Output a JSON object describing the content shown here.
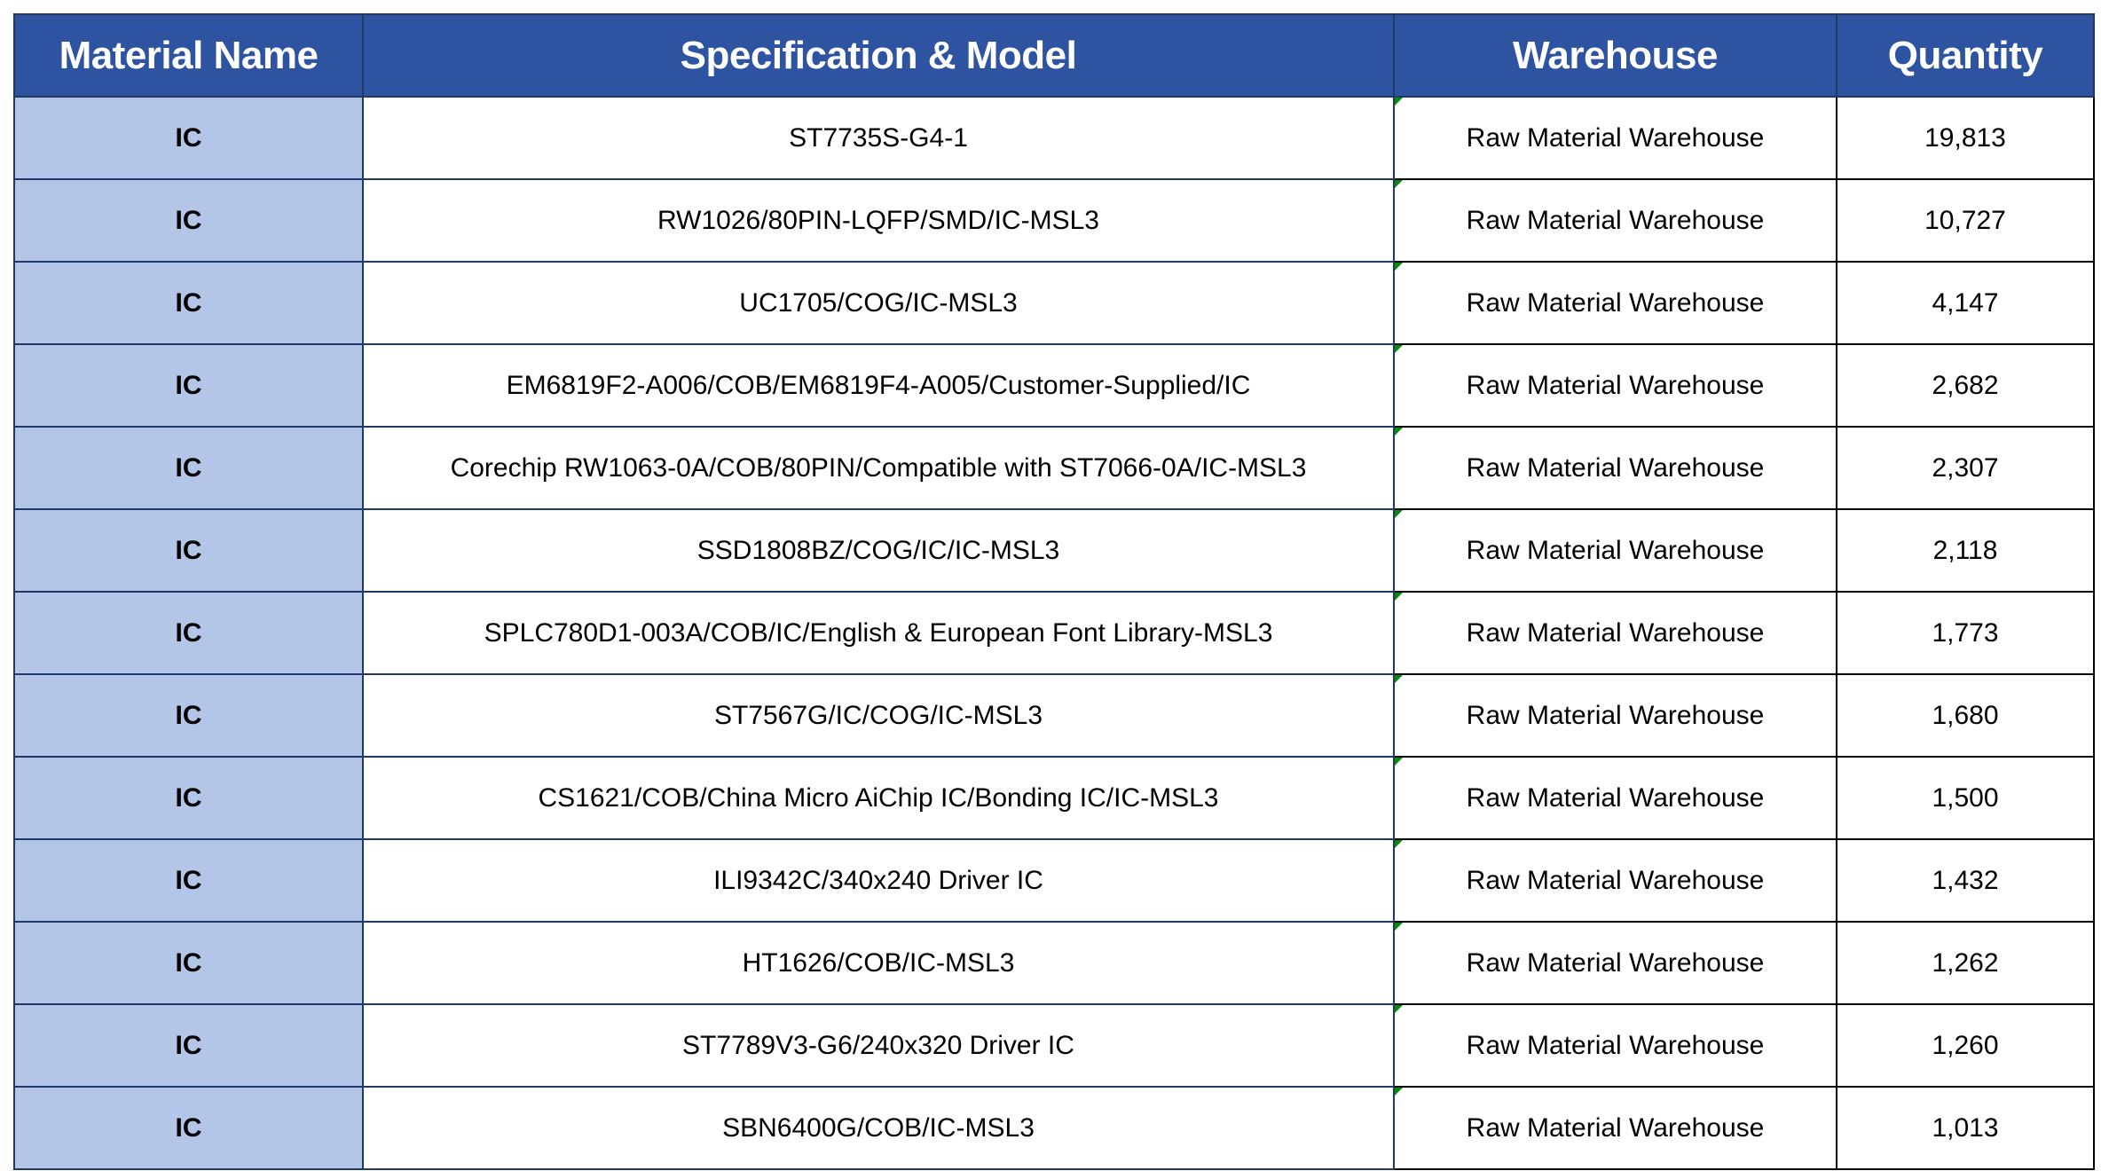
{
  "headers": [
    "Material Name",
    "Specification & Model",
    "Warehouse",
    "Quantity"
  ],
  "rows": [
    {
      "name": "IC",
      "spec": "ST7735S-G4-1",
      "warehouse": "Raw Material Warehouse",
      "qty": "19,813"
    },
    {
      "name": "IC",
      "spec": "RW1026/80PIN-LQFP/SMD/IC-MSL3",
      "warehouse": "Raw Material Warehouse",
      "qty": "10,727"
    },
    {
      "name": "IC",
      "spec": "UC1705/COG/IC-MSL3",
      "warehouse": "Raw Material Warehouse",
      "qty": "4,147"
    },
    {
      "name": "IC",
      "spec": "EM6819F2-A006/COB/EM6819F4-A005/Customer-Supplied/IC",
      "warehouse": "Raw Material Warehouse",
      "qty": "2,682"
    },
    {
      "name": "IC",
      "spec": "Corechip RW1063-0A/COB/80PIN/Compatible with ST7066-0A/IC-MSL3",
      "warehouse": "Raw Material Warehouse",
      "qty": "2,307"
    },
    {
      "name": "IC",
      "spec": "SSD1808BZ/COG/IC/IC-MSL3",
      "warehouse": "Raw Material Warehouse",
      "qty": "2,118"
    },
    {
      "name": "IC",
      "spec": "SPLC780D1-003A/COB/IC/English & European Font Library-MSL3",
      "warehouse": "Raw Material Warehouse",
      "qty": "1,773"
    },
    {
      "name": "IC",
      "spec": "ST7567G/IC/COG/IC-MSL3",
      "warehouse": "Raw Material Warehouse",
      "qty": "1,680"
    },
    {
      "name": "IC",
      "spec": "CS1621/COB/China Micro AiChip IC/Bonding IC/IC-MSL3",
      "warehouse": "Raw Material Warehouse",
      "qty": "1,500"
    },
    {
      "name": "IC",
      "spec": "ILI9342C/340x240 Driver IC",
      "warehouse": "Raw Material Warehouse",
      "qty": "1,432"
    },
    {
      "name": "IC",
      "spec": "HT1626/COB/IC-MSL3",
      "warehouse": "Raw Material Warehouse",
      "qty": "1,262"
    },
    {
      "name": "IC",
      "spec": "ST7789V3-G6/240x320 Driver IC",
      "warehouse": "Raw Material Warehouse",
      "qty": "1,260"
    },
    {
      "name": "IC",
      "spec": "SBN6400G/COB/IC-MSL3",
      "warehouse": "Raw Material Warehouse",
      "qty": "1,013"
    }
  ],
  "colors": {
    "header_bg": "#2E54A1",
    "name_col_bg": "#B4C6E7",
    "indicator": "#0A8A0A"
  }
}
